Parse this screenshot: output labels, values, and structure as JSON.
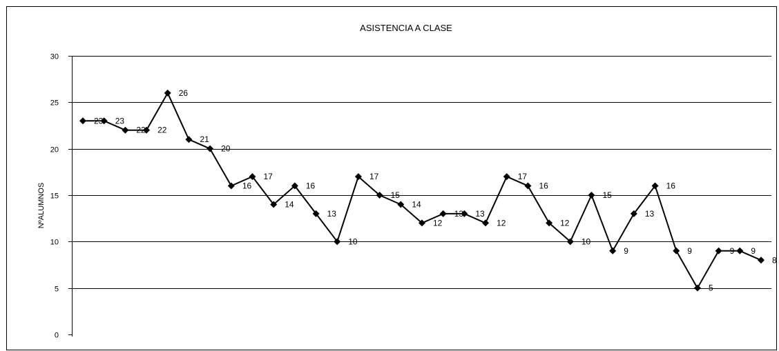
{
  "chart_data": {
    "type": "line",
    "title": "ASISTENCIA A CLASE",
    "xlabel": "",
    "ylabel": "NºALUMNOS",
    "ylim": [
      0,
      30
    ],
    "yticks": [
      "0",
      "5",
      "10",
      "15",
      "20",
      "25",
      "30"
    ],
    "grid": true,
    "legend": "none",
    "colors": {
      "series": "#000000",
      "grid": "#000000",
      "background": "#ffffff"
    },
    "marker": "diamond",
    "series": [
      {
        "values": [
          23,
          23,
          22,
          22,
          26,
          21,
          20,
          16,
          17,
          14,
          16,
          13,
          10,
          17,
          15,
          14,
          12,
          13,
          13,
          12,
          17,
          16,
          12,
          10,
          15,
          9,
          13,
          16,
          9,
          5,
          9,
          9,
          8
        ],
        "data_labels": [
          "23",
          "23",
          "22",
          "22",
          "26",
          "21",
          "20",
          "16",
          "17",
          "14",
          "16",
          "13",
          "10",
          "17",
          "15",
          "14",
          "12",
          "13",
          "13",
          "12",
          "17",
          "16",
          "12",
          "10",
          "15",
          "9",
          "13",
          "16",
          "9",
          "5",
          "9",
          "9",
          "8"
        ]
      }
    ]
  }
}
